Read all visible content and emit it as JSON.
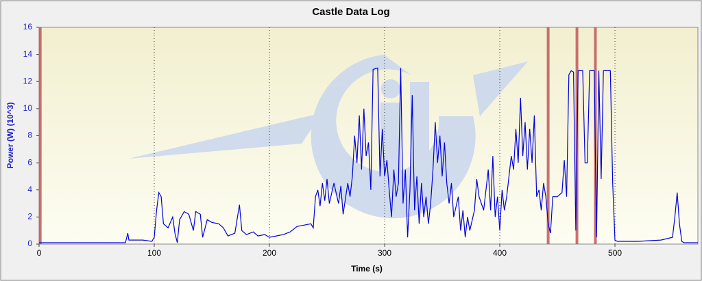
{
  "chart_data": {
    "type": "line",
    "title": "Castle Data Log",
    "x_label": "Time (s)",
    "y_label": "Power (W) (10^3)",
    "xlim": [
      0,
      572
    ],
    "ylim": [
      0,
      16
    ],
    "xticks": [
      0,
      100,
      200,
      300,
      400,
      500
    ],
    "yticks": [
      0,
      2,
      4,
      6,
      8,
      10,
      12,
      14,
      16
    ],
    "grid": true,
    "markers": [
      1,
      442,
      467,
      483
    ],
    "marker_color": "#c05858",
    "x": [
      0,
      75,
      77,
      78,
      90,
      98,
      100,
      102,
      104,
      106,
      108,
      112,
      116,
      118,
      120,
      122,
      126,
      130,
      134,
      136,
      140,
      142,
      146,
      150,
      156,
      160,
      164,
      170,
      174,
      176,
      180,
      186,
      190,
      196,
      200,
      206,
      212,
      218,
      224,
      230,
      236,
      238,
      240,
      242,
      244,
      246,
      248,
      250,
      252,
      256,
      260,
      262,
      264,
      268,
      270,
      272,
      274,
      276,
      278,
      280,
      282,
      284,
      286,
      288,
      290,
      294,
      296,
      298,
      300,
      302,
      304,
      306,
      308,
      310,
      312,
      314,
      316,
      318,
      320,
      322,
      324,
      326,
      328,
      330,
      332,
      334,
      336,
      338,
      340,
      342,
      344,
      346,
      348,
      350,
      352,
      354,
      356,
      358,
      360,
      364,
      366,
      368,
      370,
      372,
      374,
      378,
      380,
      382,
      386,
      388,
      390,
      392,
      394,
      396,
      398,
      400,
      402,
      404,
      406,
      410,
      412,
      414,
      416,
      418,
      420,
      422,
      424,
      426,
      428,
      430,
      432,
      434,
      436,
      438,
      440,
      442,
      444,
      446,
      450,
      454,
      456,
      458,
      460,
      462,
      464,
      466,
      468,
      472,
      474,
      476,
      478,
      482,
      484,
      486,
      488,
      490,
      496,
      498,
      500,
      502,
      520,
      540,
      550,
      552,
      554,
      556,
      558,
      560,
      572
    ],
    "series": [
      {
        "color": "#0000dd",
        "values": [
          0.1,
          0.1,
          0.8,
          0.3,
          0.3,
          0.2,
          0.5,
          2.5,
          3.8,
          3.5,
          1.5,
          1.2,
          2.0,
          0.8,
          0.1,
          1.8,
          2.4,
          2.2,
          1.0,
          2.4,
          2.2,
          0.5,
          1.8,
          1.6,
          1.5,
          1.2,
          0.6,
          0.8,
          2.9,
          1.0,
          0.7,
          0.9,
          0.6,
          0.7,
          0.5,
          0.6,
          0.7,
          0.9,
          1.3,
          1.4,
          1.5,
          1.2,
          3.5,
          4.0,
          2.8,
          4.5,
          3.2,
          4.8,
          3.0,
          4.5,
          3.0,
          4.3,
          2.2,
          4.5,
          3.5,
          5.0,
          8.0,
          6.0,
          9.5,
          5.5,
          10.0,
          6.5,
          7.5,
          4.0,
          12.9,
          13.0,
          5.0,
          8.5,
          5.0,
          6.2,
          4.0,
          2.0,
          5.5,
          3.5,
          4.5,
          13.0,
          3.0,
          5.5,
          0.5,
          4.0,
          11.0,
          2.5,
          5.0,
          1.5,
          4.5,
          2.0,
          3.5,
          1.5,
          3.0,
          5.5,
          9.0,
          6.0,
          8.0,
          5.0,
          7.5,
          4.5,
          3.0,
          4.5,
          2.0,
          3.5,
          1.0,
          2.5,
          0.5,
          2.0,
          1.0,
          2.5,
          4.8,
          3.5,
          2.5,
          4.0,
          5.5,
          2.5,
          6.5,
          2.0,
          3.5,
          1.0,
          4.0,
          2.5,
          3.5,
          6.5,
          5.5,
          8.5,
          6.0,
          10.8,
          6.5,
          9.0,
          5.5,
          8.5,
          6.0,
          9.5,
          3.5,
          4.0,
          2.5,
          4.5,
          3.5,
          1.5,
          0.8,
          3.5,
          3.5,
          3.8,
          6.2,
          3.5,
          12.5,
          12.8,
          12.7,
          1.0,
          12.8,
          12.8,
          6.0,
          6.0,
          12.8,
          12.8,
          0.5,
          12.8,
          4.8,
          12.8,
          12.8,
          4.5,
          0.3,
          0.2,
          0.2,
          0.3,
          0.5,
          2.0,
          3.8,
          1.5,
          0.2,
          0.1,
          0.1
        ]
      }
    ]
  }
}
